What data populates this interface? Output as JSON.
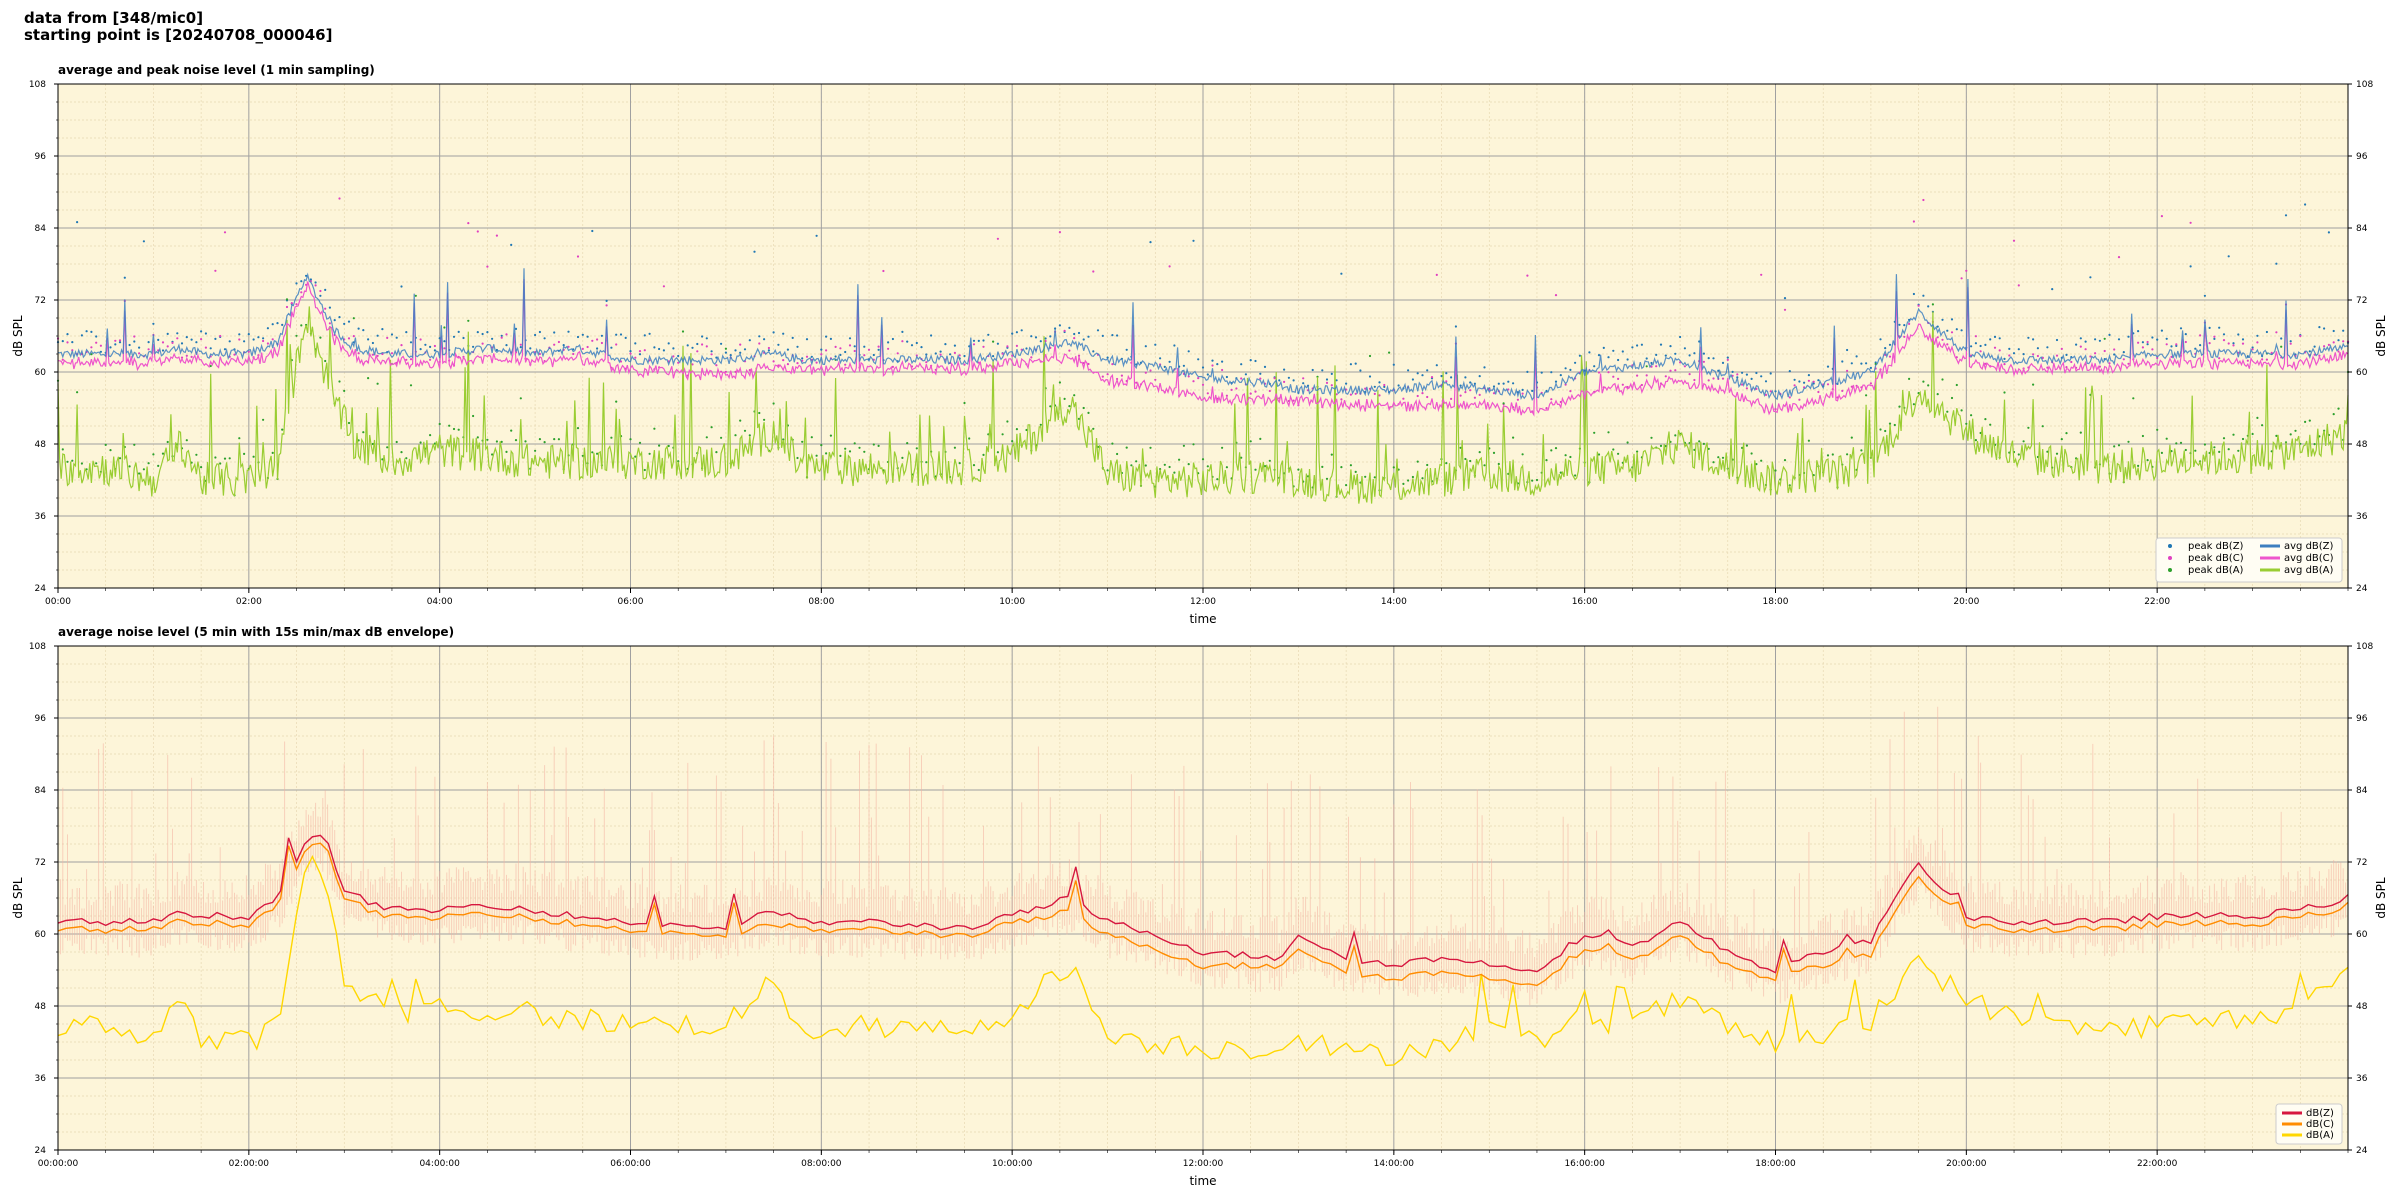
{
  "header": {
    "line1": "data from [348/mic0]",
    "line2": "starting point is [20240708_000046]"
  },
  "colors": {
    "background": "#fdf5d9",
    "peak_z": "#1f77b4",
    "peak_c": "#e040c0",
    "peak_a": "#2ca02c",
    "avg_z": "#3d7fbf",
    "avg_c": "#ee55cc",
    "avg_a": "#9acd32",
    "db_z": "#d6173f",
    "db_c": "#ff8c00",
    "db_a": "#ffd700",
    "envelope": "#f4b0a0"
  },
  "chart_data": [
    {
      "type": "line",
      "title": "average and peak noise level (1 min sampling)",
      "xlabel": "time",
      "ylabel": "dB SPL",
      "xlim_hours": [
        0,
        24
      ],
      "ylim": [
        24,
        108
      ],
      "yticks": [
        "24",
        "36",
        "48",
        "60",
        "72",
        "84",
        "96",
        "108"
      ],
      "xticks": [
        "00:00",
        "02:00",
        "04:00",
        "06:00",
        "08:00",
        "10:00",
        "12:00",
        "14:00",
        "16:00",
        "18:00",
        "20:00",
        "22:00"
      ],
      "grid": true,
      "legend_position": "lower-right",
      "legend": [
        "peak dB(Z)",
        "peak dB(C)",
        "peak dB(A)",
        "avg dB(Z)",
        "avg dB(C)",
        "avg dB(A)"
      ],
      "base_profile": {
        "x": [
          0,
          0.5,
          1.0,
          1.3,
          1.5,
          2.0,
          2.3,
          2.6,
          2.9,
          3.1,
          3.5,
          4.0,
          4.5,
          5.0,
          5.4,
          6.0,
          7.0,
          7.5,
          7.8,
          8.5,
          9.5,
          10.0,
          10.6,
          11.0,
          11.5,
          12.0,
          12.8,
          13.0,
          13.5,
          14.0,
          14.5,
          15.0,
          15.5,
          16.0,
          16.5,
          17.0,
          17.5,
          18.0,
          18.5,
          19.0,
          19.5,
          20.0,
          20.5,
          21.0,
          21.5,
          22.0,
          23.0,
          23.5,
          24.0
        ],
        "avg_z": [
          63,
          63,
          63,
          64,
          63,
          63,
          65,
          76,
          67,
          64,
          63,
          63,
          64,
          63,
          64,
          62,
          62,
          63,
          62,
          62,
          62,
          63,
          65,
          62,
          61,
          59,
          58,
          57,
          57,
          57,
          58,
          57,
          56,
          60,
          61,
          62,
          59,
          56,
          58,
          60,
          70,
          63,
          62,
          62,
          62,
          63,
          63,
          63,
          64
        ],
        "avg_c": [
          62,
          62,
          62,
          63,
          62,
          62,
          64,
          75,
          66,
          63,
          62,
          62,
          63,
          62,
          63,
          61,
          60,
          61,
          61,
          61,
          61,
          62,
          63,
          59,
          58,
          56,
          56,
          56,
          55,
          55,
          55,
          55,
          54,
          57,
          58,
          59,
          57,
          54,
          56,
          58,
          68,
          62,
          61,
          61,
          61,
          62,
          62,
          62,
          63
        ],
        "avg_a": [
          44,
          44,
          42,
          48,
          42,
          42,
          44,
          70,
          55,
          48,
          45,
          47,
          46,
          45,
          45,
          45,
          45,
          50,
          44,
          44,
          44,
          46,
          55,
          43,
          42,
          42,
          43,
          42,
          41,
          41,
          42,
          43,
          42,
          44,
          44,
          48,
          44,
          42,
          43,
          44,
          57,
          50,
          46,
          45,
          44,
          45,
          46,
          47,
          50
        ],
        "peak_offset_db": 4
      }
    },
    {
      "type": "line",
      "title": "average noise level (5 min with 15s min/max dB envelope)",
      "xlabel": "time",
      "ylabel": "dB SPL",
      "xlim_hours": [
        0,
        24
      ],
      "ylim": [
        24,
        108
      ],
      "yticks": [
        "24",
        "36",
        "48",
        "60",
        "72",
        "84",
        "96",
        "108"
      ],
      "xticks": [
        "00:00:00",
        "02:00:00",
        "04:00:00",
        "06:00:00",
        "08:00:00",
        "10:00:00",
        "12:00:00",
        "14:00:00",
        "16:00:00",
        "18:00:00",
        "20:00:00",
        "22:00:00"
      ],
      "grid": true,
      "legend_position": "lower-right",
      "legend": [
        "dB(Z)",
        "dB(C)",
        "dB(A)"
      ],
      "base_profile": {
        "x": [
          0,
          0.5,
          1.0,
          1.3,
          1.5,
          2.0,
          2.3,
          2.6,
          2.8,
          3.0,
          3.5,
          4.0,
          4.5,
          5.0,
          5.4,
          6.0,
          7.0,
          7.5,
          7.8,
          8.5,
          9.5,
          10.0,
          10.6,
          11.0,
          11.5,
          12.0,
          12.8,
          13.0,
          13.5,
          14.0,
          14.5,
          15.0,
          15.5,
          16.0,
          16.5,
          17.0,
          17.5,
          18.0,
          18.5,
          19.0,
          19.5,
          20.0,
          20.5,
          21.0,
          21.5,
          22.0,
          23.0,
          23.5,
          24.0
        ],
        "db_z": [
          62,
          62,
          62,
          64,
          63,
          63,
          66,
          76,
          76,
          67,
          64,
          64,
          65,
          64,
          63,
          62,
          61,
          64,
          62,
          62,
          61,
          63,
          66,
          62,
          60,
          57,
          56,
          60,
          56,
          55,
          56,
          55,
          54,
          60,
          58,
          62,
          57,
          54,
          57,
          59,
          72,
          63,
          62,
          62,
          62,
          63,
          63,
          64,
          66
        ],
        "db_c": [
          61,
          61,
          61,
          63,
          62,
          62,
          65,
          75,
          75,
          66,
          63,
          63,
          64,
          63,
          62,
          61,
          60,
          62,
          61,
          61,
          60,
          62,
          64,
          60,
          58,
          55,
          55,
          58,
          54,
          53,
          54,
          53,
          52,
          58,
          56,
          60,
          55,
          53,
          55,
          57,
          70,
          62,
          61,
          61,
          61,
          62,
          62,
          63,
          65
        ],
        "db_a": [
          44,
          45,
          43,
          50,
          42,
          42,
          45,
          70,
          70,
          52,
          47,
          48,
          47,
          46,
          46,
          45,
          45,
          52,
          44,
          44,
          44,
          47,
          55,
          43,
          42,
          41,
          41,
          43,
          40,
          40,
          42,
          44,
          42,
          46,
          45,
          49,
          44,
          42,
          43,
          45,
          56,
          49,
          46,
          45,
          44,
          45,
          46,
          48,
          53
        ]
      }
    }
  ]
}
